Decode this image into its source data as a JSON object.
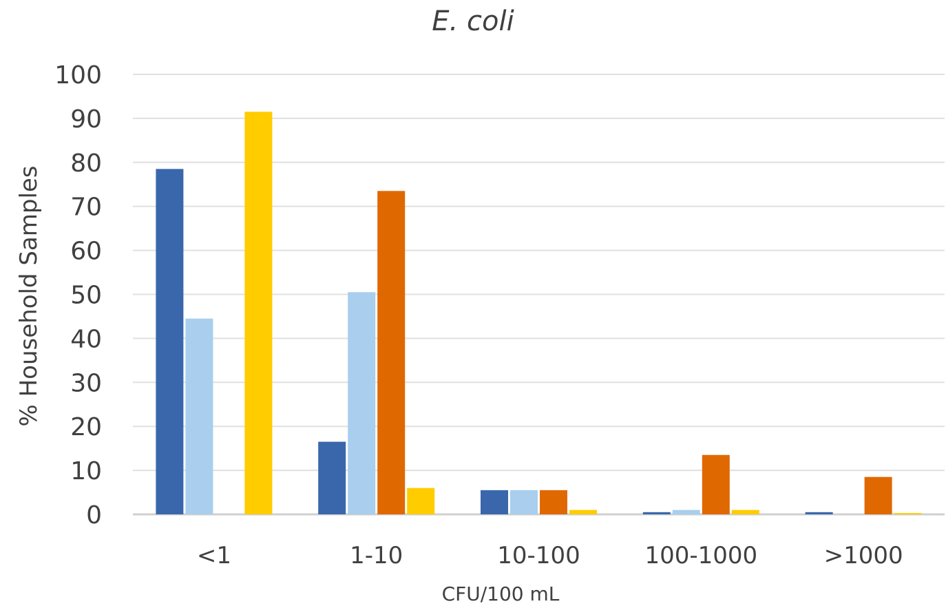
{
  "chart_data": {
    "type": "bar",
    "title": "E. coli",
    "xlabel": "CFU/100 mL",
    "ylabel": "% Household Samples",
    "ylim": [
      0,
      100
    ],
    "yticks": [
      0,
      10,
      20,
      30,
      40,
      50,
      60,
      70,
      80,
      90,
      100
    ],
    "grid": true,
    "legend": "none",
    "categories": [
      "<1",
      "1-10",
      "10-100",
      "100-1000",
      ">1000"
    ],
    "series": [
      {
        "color": "#3a67ab",
        "values": [
          78.5,
          16.5,
          5.5,
          0.5,
          0.5
        ]
      },
      {
        "color": "#a9ceee",
        "values": [
          44.5,
          50.5,
          5.5,
          1.0,
          0
        ]
      },
      {
        "color": "#e06800",
        "values": [
          0,
          73.5,
          5.5,
          13.5,
          8.5
        ]
      },
      {
        "color": "#ffcc00",
        "values": [
          91.5,
          6.0,
          1.0,
          1.0,
          0.3
        ]
      }
    ]
  }
}
